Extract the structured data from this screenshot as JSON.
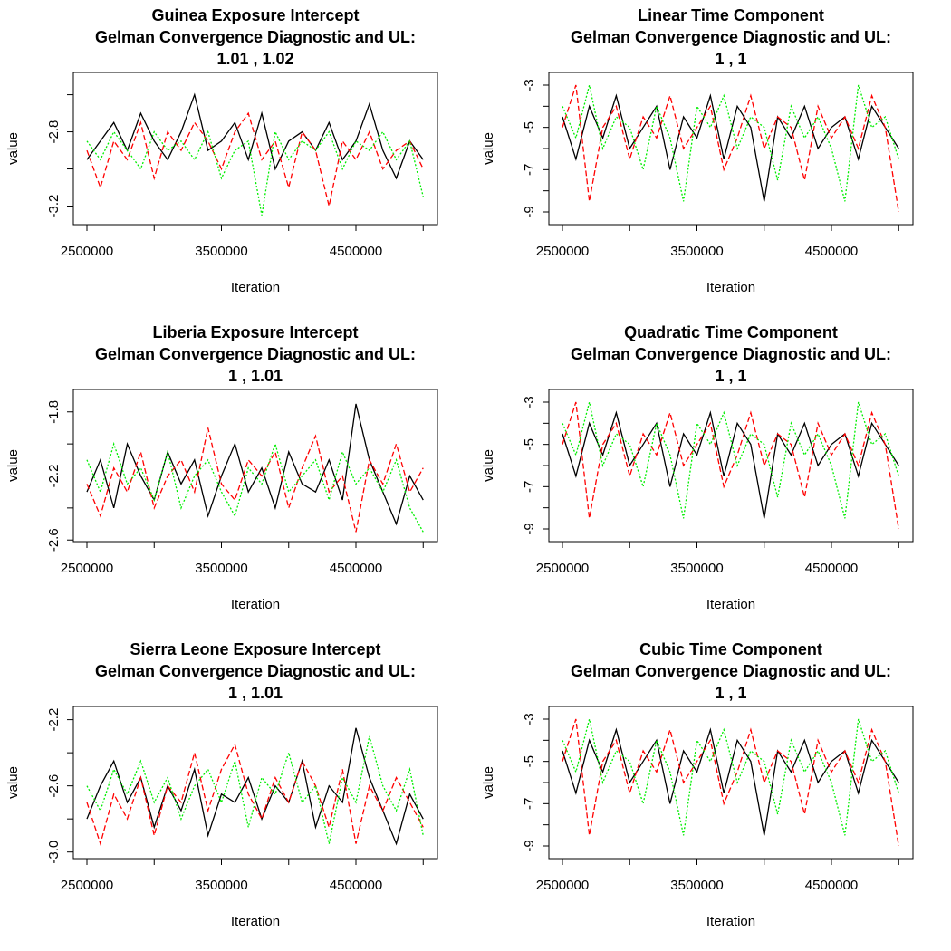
{
  "chart_data": [
    {
      "type": "line",
      "title": [
        "Guinea Exposure Intercept",
        "Gelman Convergence Diagnostic and UL:",
        "1.01 ,  1.02"
      ],
      "x_label": "Iteration",
      "y_label": "value",
      "x": [
        2500000,
        2600000,
        2700000,
        2800000,
        2900000,
        3000000,
        3100000,
        3200000,
        3300000,
        3400000,
        3500000,
        3600000,
        3700000,
        3800000,
        3900000,
        4000000,
        4100000,
        4200000,
        4300000,
        4400000,
        4500000,
        4600000,
        4700000,
        4800000,
        4900000,
        5000000
      ],
      "xlim": [
        2399000,
        5106000
      ],
      "xticks": [
        2500000,
        {
          "value": 3000000,
          "label": null
        },
        3500000,
        {
          "value": 4000000,
          "label": null
        },
        4500000,
        {
          "value": 5000000,
          "label": null
        }
      ],
      "ylim": [
        -3.3,
        -2.48
      ],
      "yticks": [
        -3.2,
        {
          "value": -3,
          "label": null
        },
        -2.8,
        {
          "value": -2.6,
          "label": null
        }
      ],
      "series": [
        {
          "color": "#000000",
          "linestyle": "solid",
          "values": [
            -2.95,
            -2.85,
            -2.75,
            -2.9,
            -2.7,
            -2.85,
            -2.95,
            -2.8,
            -2.6,
            -2.9,
            -2.85,
            -2.75,
            -2.95,
            -2.7,
            -3.0,
            -2.85,
            -2.8,
            -2.9,
            -2.75,
            -2.95,
            -2.85,
            -2.65,
            -2.9,
            -3.05,
            -2.85,
            -2.95
          ]
        },
        {
          "color": "#ff0000",
          "linestyle": "dashed",
          "values": [
            -2.9,
            -3.1,
            -2.85,
            -2.95,
            -2.75,
            -3.05,
            -2.8,
            -2.9,
            -2.75,
            -2.85,
            -3.0,
            -2.8,
            -2.7,
            -2.95,
            -2.85,
            -3.1,
            -2.8,
            -2.9,
            -3.2,
            -2.85,
            -2.95,
            -2.8,
            -3.0,
            -2.9,
            -2.85,
            -3.0
          ]
        },
        {
          "color": "#00ee00",
          "linestyle": "dotted",
          "values": [
            -2.85,
            -2.95,
            -2.8,
            -2.9,
            -3.0,
            -2.8,
            -2.9,
            -2.85,
            -2.95,
            -2.8,
            -3.05,
            -2.9,
            -2.85,
            -3.25,
            -2.8,
            -2.95,
            -2.85,
            -2.9,
            -2.8,
            -3.0,
            -2.85,
            -2.9,
            -2.8,
            -2.95,
            -2.85,
            -3.15
          ]
        }
      ]
    },
    {
      "type": "line",
      "title": [
        "Linear Time Component",
        "Gelman Convergence Diagnostic and UL:",
        "1 ,  1"
      ],
      "x_label": "Iteration",
      "y_label": "value",
      "x": [
        2500000,
        2600000,
        2700000,
        2800000,
        2900000,
        3000000,
        3100000,
        3200000,
        3300000,
        3400000,
        3500000,
        3600000,
        3700000,
        3800000,
        3900000,
        4000000,
        4100000,
        4200000,
        4300000,
        4400000,
        4500000,
        4600000,
        4700000,
        4800000,
        4900000,
        5000000
      ],
      "xlim": [
        2399000,
        5106000
      ],
      "xticks": [
        2500000,
        {
          "value": 3000000,
          "label": null
        },
        3500000,
        {
          "value": 4000000,
          "label": null
        },
        4500000,
        {
          "value": 5000000,
          "label": null
        }
      ],
      "ylim": [
        -9.6,
        -2.4
      ],
      "yticks": [
        -9,
        {
          "value": -8,
          "label": null
        },
        -7,
        {
          "value": -6,
          "label": null
        },
        -5,
        {
          "value": -4,
          "label": null
        },
        -3
      ],
      "series": [
        {
          "color": "#000000",
          "linestyle": "solid",
          "values": [
            -4.5,
            -6.5,
            -4,
            -5.5,
            -3.5,
            -6,
            -5,
            -4,
            -7,
            -4.5,
            -5.5,
            -3.5,
            -6.5,
            -4,
            -5,
            -8.5,
            -4.5,
            -5.5,
            -4,
            -6,
            -5,
            -4.5,
            -6.5,
            -4,
            -5,
            -6
          ]
        },
        {
          "color": "#ff0000",
          "linestyle": "dashed",
          "values": [
            -5,
            -3,
            -8.5,
            -5,
            -4,
            -6.5,
            -4.5,
            -5.5,
            -3.5,
            -6,
            -5,
            -4,
            -7,
            -5.5,
            -3.5,
            -6,
            -4.5,
            -5,
            -7.5,
            -4,
            -5.5,
            -4.5,
            -6,
            -3.5,
            -5,
            -9
          ]
        },
        {
          "color": "#00ee00",
          "linestyle": "dotted",
          "values": [
            -4,
            -5.5,
            -3,
            -6,
            -4.5,
            -5,
            -7,
            -4,
            -5.5,
            -8.5,
            -4,
            -5,
            -3.5,
            -6,
            -4.5,
            -5,
            -7.5,
            -4,
            -5.5,
            -4.5,
            -6,
            -8.5,
            -3,
            -5,
            -4.5,
            -6.5
          ]
        }
      ]
    },
    {
      "type": "line",
      "title": [
        "Liberia Exposure Intercept",
        "Gelman Convergence Diagnostic and UL:",
        "1 ,  1.01"
      ],
      "x_label": "Iteration",
      "y_label": "value",
      "x": [
        2500000,
        2600000,
        2700000,
        2800000,
        2900000,
        3000000,
        3100000,
        3200000,
        3300000,
        3400000,
        3500000,
        3600000,
        3700000,
        3800000,
        3900000,
        4000000,
        4100000,
        4200000,
        4300000,
        4400000,
        4500000,
        4600000,
        4700000,
        4800000,
        4900000,
        5000000
      ],
      "xlim": [
        2399000,
        5106000
      ],
      "xticks": [
        2500000,
        {
          "value": 3000000,
          "label": null
        },
        3500000,
        {
          "value": 4000000,
          "label": null
        },
        4500000,
        {
          "value": 5000000,
          "label": null
        }
      ],
      "ylim": [
        -2.61,
        -1.66
      ],
      "yticks": [
        -2.6,
        {
          "value": -2.4,
          "label": null
        },
        -2.2,
        {
          "value": -2,
          "label": null
        },
        -1.8
      ],
      "series": [
        {
          "color": "#000000",
          "linestyle": "solid",
          "values": [
            -2.3,
            -2.1,
            -2.4,
            -2.0,
            -2.2,
            -2.35,
            -2.05,
            -2.25,
            -2.1,
            -2.45,
            -2.2,
            -2.0,
            -2.3,
            -2.15,
            -2.4,
            -2.05,
            -2.25,
            -2.3,
            -2.1,
            -2.35,
            -1.75,
            -2.1,
            -2.3,
            -2.5,
            -2.2,
            -2.35
          ]
        },
        {
          "color": "#ff0000",
          "linestyle": "dashed",
          "values": [
            -2.25,
            -2.45,
            -2.15,
            -2.3,
            -2.05,
            -2.4,
            -2.2,
            -2.1,
            -2.3,
            -1.9,
            -2.25,
            -2.35,
            -2.1,
            -2.2,
            -2.05,
            -2.4,
            -2.15,
            -1.95,
            -2.3,
            -2.2,
            -2.55,
            -2.1,
            -2.25,
            -2.0,
            -2.3,
            -2.15
          ]
        },
        {
          "color": "#00ee00",
          "linestyle": "dotted",
          "values": [
            -2.1,
            -2.3,
            -2.0,
            -2.25,
            -2.15,
            -2.35,
            -2.05,
            -2.4,
            -2.2,
            -2.1,
            -2.3,
            -2.45,
            -2.15,
            -2.25,
            -2.0,
            -2.3,
            -2.2,
            -2.1,
            -2.35,
            -2.05,
            -2.25,
            -2.15,
            -2.3,
            -2.1,
            -2.4,
            -2.55
          ]
        }
      ]
    },
    {
      "type": "line",
      "title": [
        "Quadratic Time Component",
        "Gelman Convergence Diagnostic and UL:",
        "1 ,  1"
      ],
      "x_label": "Iteration",
      "y_label": "value",
      "x": [
        2500000,
        2600000,
        2700000,
        2800000,
        2900000,
        3000000,
        3100000,
        3200000,
        3300000,
        3400000,
        3500000,
        3600000,
        3700000,
        3800000,
        3900000,
        4000000,
        4100000,
        4200000,
        4300000,
        4400000,
        4500000,
        4600000,
        4700000,
        4800000,
        4900000,
        5000000
      ],
      "xlim": [
        2399000,
        5106000
      ],
      "xticks": [
        2500000,
        {
          "value": 3000000,
          "label": null
        },
        3500000,
        {
          "value": 4000000,
          "label": null
        },
        4500000,
        {
          "value": 5000000,
          "label": null
        }
      ],
      "ylim": [
        -9.6,
        -2.4
      ],
      "yticks": [
        -9,
        {
          "value": -8,
          "label": null
        },
        -7,
        {
          "value": -6,
          "label": null
        },
        -5,
        {
          "value": -4,
          "label": null
        },
        -3
      ],
      "series": [
        {
          "color": "#000000",
          "linestyle": "solid",
          "values": [
            -4.5,
            -6.5,
            -4,
            -5.5,
            -3.5,
            -6,
            -5,
            -4,
            -7,
            -4.5,
            -5.5,
            -3.5,
            -6.5,
            -4,
            -5,
            -8.5,
            -4.5,
            -5.5,
            -4,
            -6,
            -5,
            -4.5,
            -6.5,
            -4,
            -5,
            -6
          ]
        },
        {
          "color": "#ff0000",
          "linestyle": "dashed",
          "values": [
            -5,
            -3,
            -8.5,
            -5,
            -4,
            -6.5,
            -4.5,
            -5.5,
            -3.5,
            -6,
            -5,
            -4,
            -7,
            -5.5,
            -3.5,
            -6,
            -4.5,
            -5,
            -7.5,
            -4,
            -5.5,
            -4.5,
            -6,
            -3.5,
            -5,
            -9
          ]
        },
        {
          "color": "#00ee00",
          "linestyle": "dotted",
          "values": [
            -4,
            -5.5,
            -3,
            -6,
            -4.5,
            -5,
            -7,
            -4,
            -5.5,
            -8.5,
            -4,
            -5,
            -3.5,
            -6,
            -4.5,
            -5,
            -7.5,
            -4,
            -5.5,
            -4.5,
            -6,
            -8.5,
            -3,
            -5,
            -4.5,
            -6.5
          ]
        }
      ]
    },
    {
      "type": "line",
      "title": [
        "Sierra Leone Exposure Intercept",
        "Gelman Convergence Diagnostic and UL:",
        "1 ,  1.01"
      ],
      "x_label": "Iteration",
      "y_label": "value",
      "x": [
        2500000,
        2600000,
        2700000,
        2800000,
        2900000,
        3000000,
        3100000,
        3200000,
        3300000,
        3400000,
        3500000,
        3600000,
        3700000,
        3800000,
        3900000,
        4000000,
        4100000,
        4200000,
        4300000,
        4400000,
        4500000,
        4600000,
        4700000,
        4800000,
        4900000,
        5000000
      ],
      "xlim": [
        2399000,
        5106000
      ],
      "xticks": [
        2500000,
        {
          "value": 3000000,
          "label": null
        },
        3500000,
        {
          "value": 4000000,
          "label": null
        },
        4500000,
        {
          "value": 5000000,
          "label": null
        }
      ],
      "ylim": [
        -3.04,
        -2.12
      ],
      "yticks": [
        {
          "value": -3,
          "label": "-3.0"
        },
        {
          "value": -2.8,
          "label": null
        },
        -2.6,
        {
          "value": -2.4,
          "label": null
        },
        -2.2
      ],
      "series": [
        {
          "color": "#000000",
          "linestyle": "solid",
          "values": [
            -2.8,
            -2.6,
            -2.45,
            -2.7,
            -2.55,
            -2.85,
            -2.6,
            -2.75,
            -2.5,
            -2.9,
            -2.65,
            -2.7,
            -2.55,
            -2.8,
            -2.6,
            -2.7,
            -2.45,
            -2.85,
            -2.6,
            -2.7,
            -2.25,
            -2.55,
            -2.75,
            -2.95,
            -2.65,
            -2.8
          ]
        },
        {
          "color": "#ff0000",
          "linestyle": "dashed",
          "values": [
            -2.7,
            -2.95,
            -2.65,
            -2.8,
            -2.55,
            -2.9,
            -2.6,
            -2.7,
            -2.4,
            -2.75,
            -2.5,
            -2.35,
            -2.65,
            -2.8,
            -2.55,
            -2.7,
            -2.45,
            -2.6,
            -2.85,
            -2.5,
            -2.95,
            -2.6,
            -2.75,
            -2.55,
            -2.7,
            -2.85
          ]
        },
        {
          "color": "#00ee00",
          "linestyle": "dotted",
          "values": [
            -2.6,
            -2.75,
            -2.5,
            -2.65,
            -2.45,
            -2.7,
            -2.55,
            -2.8,
            -2.6,
            -2.5,
            -2.7,
            -2.45,
            -2.85,
            -2.55,
            -2.65,
            -2.4,
            -2.7,
            -2.6,
            -2.95,
            -2.55,
            -2.7,
            -2.3,
            -2.6,
            -2.75,
            -2.5,
            -2.9
          ]
        }
      ]
    },
    {
      "type": "line",
      "title": [
        "Cubic Time Component",
        "Gelman Convergence Diagnostic and UL:",
        "1 ,  1"
      ],
      "x_label": "Iteration",
      "y_label": "value",
      "x": [
        2500000,
        2600000,
        2700000,
        2800000,
        2900000,
        3000000,
        3100000,
        3200000,
        3300000,
        3400000,
        3500000,
        3600000,
        3700000,
        3800000,
        3900000,
        4000000,
        4100000,
        4200000,
        4300000,
        4400000,
        4500000,
        4600000,
        4700000,
        4800000,
        4900000,
        5000000
      ],
      "xlim": [
        2399000,
        5106000
      ],
      "xticks": [
        2500000,
        {
          "value": 3000000,
          "label": null
        },
        3500000,
        {
          "value": 4000000,
          "label": null
        },
        4500000,
        {
          "value": 5000000,
          "label": null
        }
      ],
      "ylim": [
        -9.6,
        -2.4
      ],
      "yticks": [
        -9,
        {
          "value": -8,
          "label": null
        },
        -7,
        {
          "value": -6,
          "label": null
        },
        -5,
        {
          "value": -4,
          "label": null
        },
        -3
      ],
      "series": [
        {
          "color": "#000000",
          "linestyle": "solid",
          "values": [
            -4.5,
            -6.5,
            -4,
            -5.5,
            -3.5,
            -6,
            -5,
            -4,
            -7,
            -4.5,
            -5.5,
            -3.5,
            -6.5,
            -4,
            -5,
            -8.5,
            -4.5,
            -5.5,
            -4,
            -6,
            -5,
            -4.5,
            -6.5,
            -4,
            -5,
            -6
          ]
        },
        {
          "color": "#ff0000",
          "linestyle": "dashed",
          "values": [
            -5,
            -3,
            -8.5,
            -5,
            -4,
            -6.5,
            -4.5,
            -5.5,
            -3.5,
            -6,
            -5,
            -4,
            -7,
            -5.5,
            -3.5,
            -6,
            -4.5,
            -5,
            -7.5,
            -4,
            -5.5,
            -4.5,
            -6,
            -3.5,
            -5,
            -9
          ]
        },
        {
          "color": "#00ee00",
          "linestyle": "dotted",
          "values": [
            -4,
            -5.5,
            -3,
            -6,
            -4.5,
            -5,
            -7,
            -4,
            -5.5,
            -8.5,
            -4,
            -5,
            -3.5,
            -6,
            -4.5,
            -5,
            -7.5,
            -4,
            -5.5,
            -4.5,
            -6,
            -8.5,
            -3,
            -5,
            -4.5,
            -6.5
          ]
        }
      ]
    }
  ]
}
